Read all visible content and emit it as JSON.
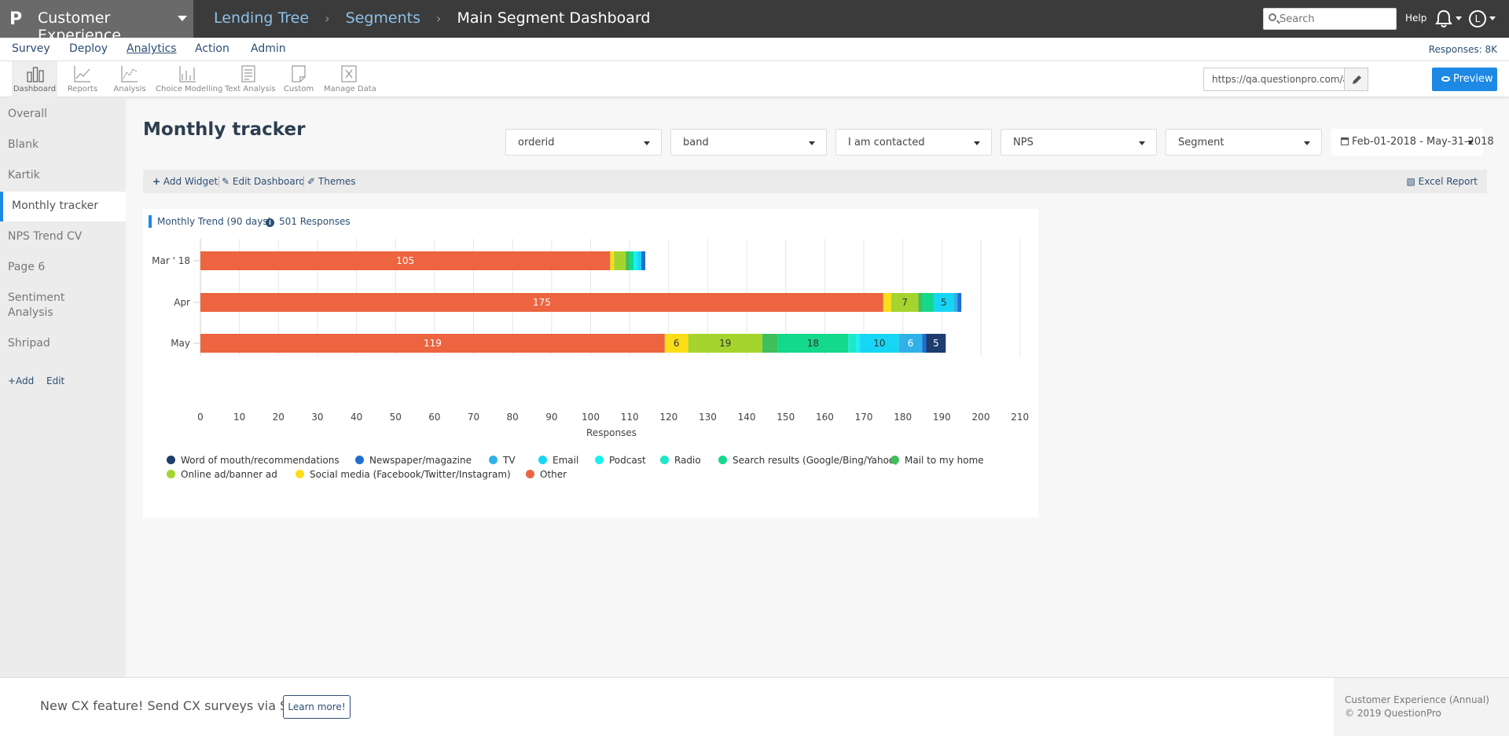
{
  "topbar": {
    "logo": "P",
    "app_name": "Customer Experience",
    "breadcrumbs": [
      "Lending Tree",
      "Segments"
    ],
    "current": "Main Segment Dashboard",
    "search_placeholder": "Search",
    "help": "Help",
    "user_initial": "L"
  },
  "nav": {
    "items": [
      "Survey",
      "Deploy",
      "Analytics",
      "Action",
      "Admin"
    ],
    "active": "Analytics",
    "responses": "Responses: 8K"
  },
  "toolbar": {
    "items": [
      "Dashboard",
      "Reports",
      "Analysis",
      "Choice Modelling",
      "Text Analysis",
      "Custom",
      "Manage Data"
    ],
    "active": "Dashboard",
    "url": "https://qa.questionpro.com/a/cxLogin.do?",
    "preview": "Preview"
  },
  "sidebar": {
    "items": [
      "Overall",
      "Blank",
      "Kartik",
      "Monthly tracker",
      "NPS Trend CV",
      "Page 6",
      "Sentiment Analysis",
      "Shripad"
    ],
    "active": "Monthly tracker",
    "add": "+Add",
    "edit": "Edit"
  },
  "main": {
    "title": "Monthly tracker",
    "filters": [
      "orderid",
      "band",
      "I am contacted",
      "NPS",
      "Segment"
    ],
    "date_range": "Feb-01-2018 - May-31-2018",
    "actions": {
      "add_widget": "Add Widget",
      "edit_dashboard": "Edit Dashboard",
      "themes": "Themes",
      "excel_report": "Excel Report"
    }
  },
  "widget": {
    "title": "Monthly Trend (90 days)",
    "responses": "501 Responses"
  },
  "chart_data": {
    "type": "bar",
    "orientation": "horizontal",
    "stacked": true,
    "categories": [
      "Mar ' 18",
      "Apr",
      "May"
    ],
    "xlabel": "Responses",
    "xlim": [
      0,
      210
    ],
    "xticks": [
      0,
      10,
      20,
      30,
      40,
      50,
      60,
      70,
      80,
      90,
      100,
      110,
      120,
      130,
      140,
      150,
      160,
      170,
      180,
      190,
      200,
      210
    ],
    "grid": true,
    "legend_position": "bottom",
    "series": [
      {
        "name": "Other",
        "color": "#ec6440",
        "values": [
          105,
          175,
          119
        ]
      },
      {
        "name": "Social media (Facebook/Twitter/Instagram)",
        "color": "#fade1a",
        "values": [
          1,
          2,
          6
        ]
      },
      {
        "name": "Online ad/banner ad",
        "color": "#a6d42e",
        "values": [
          3,
          7,
          19
        ]
      },
      {
        "name": "Mail to my home",
        "color": "#3fbf5b",
        "values": [
          1,
          1,
          4
        ]
      },
      {
        "name": "Search results (Google/Bing/Yahoo)",
        "color": "#14d88a",
        "values": [
          1,
          3,
          18
        ]
      },
      {
        "name": "Radio",
        "color": "#1ee8c8",
        "values": [
          0,
          0,
          2
        ]
      },
      {
        "name": "Podcast",
        "color": "#17f0f0",
        "values": [
          1,
          0,
          1
        ]
      },
      {
        "name": "Email",
        "color": "#17d6f5",
        "values": [
          1,
          5,
          10
        ]
      },
      {
        "name": "TV",
        "color": "#32b0e8",
        "values": [
          0,
          1,
          6
        ]
      },
      {
        "name": "Newspaper/magazine",
        "color": "#1e6fd0",
        "values": [
          1,
          1,
          1
        ]
      },
      {
        "name": "Word of mouth/recommendations",
        "color": "#1f3c6e",
        "values": [
          0,
          0,
          5
        ]
      }
    ],
    "data_labels": [
      {
        "category": "Mar ' 18",
        "series": "Other",
        "text": "105"
      },
      {
        "category": "Apr",
        "series": "Other",
        "text": "175"
      },
      {
        "category": "Apr",
        "series": "Online ad/banner ad",
        "text": "7"
      },
      {
        "category": "Apr",
        "series": "Email",
        "text": "5"
      },
      {
        "category": "May",
        "series": "Other",
        "text": "119"
      },
      {
        "category": "May",
        "series": "Social media (Facebook/Twitter/Instagram)",
        "text": "6"
      },
      {
        "category": "May",
        "series": "Online ad/banner ad",
        "text": "19"
      },
      {
        "category": "May",
        "series": "Search results (Google/Bing/Yahoo)",
        "text": "18"
      },
      {
        "category": "May",
        "series": "Email",
        "text": "10"
      },
      {
        "category": "May",
        "series": "TV",
        "text": "6"
      },
      {
        "category": "May",
        "series": "Word of mouth/recommendations",
        "text": "5"
      }
    ]
  },
  "legend": {
    "order": [
      "Word of mouth/recommendations",
      "Newspaper/magazine",
      "TV",
      "Email",
      "Podcast",
      "Radio",
      "Search results (Google/Bing/Yahoo)",
      "Mail to my home",
      "Online ad/banner ad",
      "Social media (Facebook/Twitter/Instagram)",
      "Other"
    ]
  },
  "footer": {
    "message": "New CX feature! Send CX surveys via SMS",
    "learn_more": "Learn more!",
    "edition": "Customer Experience (Annual)",
    "copyright": "© 2019 QuestionPro"
  }
}
